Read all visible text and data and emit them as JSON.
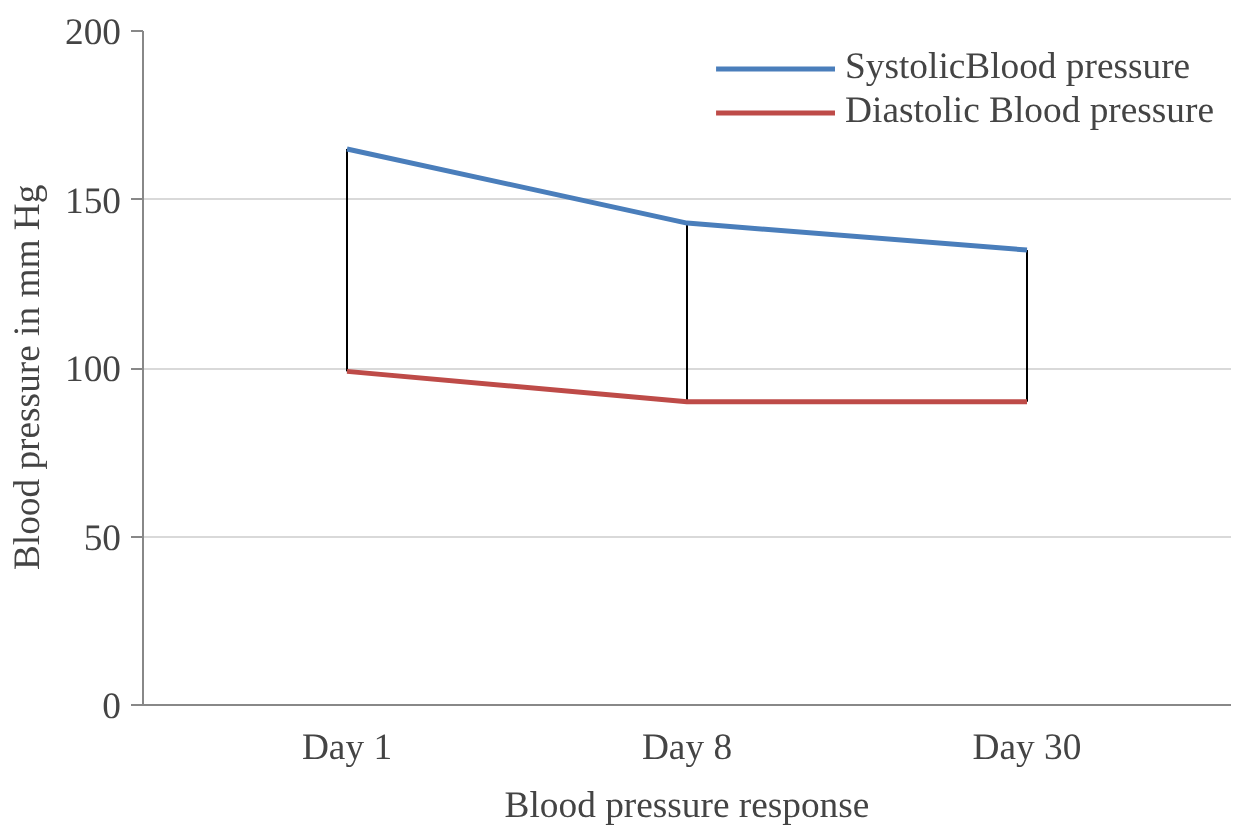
{
  "chart_data": {
    "type": "line",
    "xlabel": "Blood pressure response",
    "ylabel": "Blood pressure  in mm  Hg",
    "categories": [
      "Day 1",
      "Day 8",
      "Day 30"
    ],
    "series": [
      {
        "name": "SystolicBlood pressure",
        "color": "#4a7ebb",
        "values": [
          165,
          143,
          135
        ]
      },
      {
        "name": "Diastolic Blood pressure",
        "color": "#be4b48",
        "values": [
          99,
          90,
          90
        ]
      },
      {
        "type": "bar",
        "color": "#000000",
        "base": [
          99,
          90,
          90
        ],
        "values": [
          66,
          53,
          45
        ]
      }
    ],
    "ylim": [
      0,
      200
    ],
    "yticks": [
      0,
      50,
      100,
      150,
      200
    ],
    "grid": "y",
    "legend": "top right",
    "marker": "none",
    "line_style": "solid"
  }
}
